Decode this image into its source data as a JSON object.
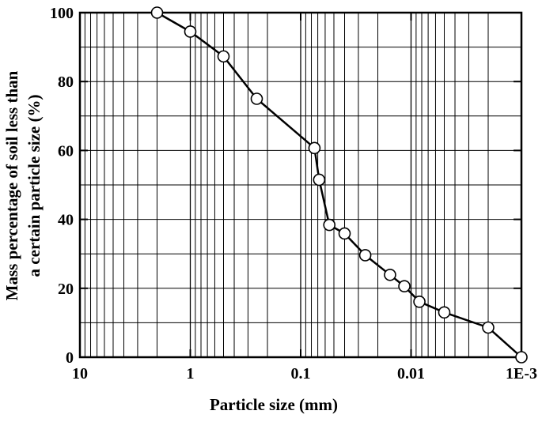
{
  "chart_data": {
    "type": "scatter",
    "title": "",
    "xlabel": "Particle size (mm)",
    "ylabel_lines": [
      "Mass percentage of soil less than",
      "a certain particle size (%)"
    ],
    "x_scale": "log",
    "x_reversed": true,
    "xlim": [
      10,
      0.001
    ],
    "ylim": [
      0,
      100
    ],
    "x_ticks": [
      {
        "value": 10,
        "label": "10"
      },
      {
        "value": 1,
        "label": "1"
      },
      {
        "value": 0.1,
        "label": "0.1"
      },
      {
        "value": 0.01,
        "label": "0.01"
      },
      {
        "value": 0.001,
        "label": "1E-3"
      }
    ],
    "y_ticks": [
      {
        "value": 0,
        "label": "0"
      },
      {
        "value": 20,
        "label": "20"
      },
      {
        "value": 40,
        "label": "40"
      },
      {
        "value": 60,
        "label": "60"
      },
      {
        "value": 80,
        "label": "80"
      },
      {
        "value": 100,
        "label": "100"
      }
    ],
    "grid": true,
    "marker": "open-circle",
    "line_connected": true,
    "series": [
      {
        "points": [
          {
            "x": 2.0,
            "y": 100
          },
          {
            "x": 1.0,
            "y": 94.5
          },
          {
            "x": 0.5,
            "y": 87.3
          },
          {
            "x": 0.25,
            "y": 75
          },
          {
            "x": 0.075,
            "y": 60.7
          },
          {
            "x": 0.068,
            "y": 51.5
          },
          {
            "x": 0.055,
            "y": 38.4
          },
          {
            "x": 0.04,
            "y": 35.9
          },
          {
            "x": 0.026,
            "y": 29.6
          },
          {
            "x": 0.0155,
            "y": 23.9
          },
          {
            "x": 0.0115,
            "y": 20.6
          },
          {
            "x": 0.0084,
            "y": 16.1
          },
          {
            "x": 0.005,
            "y": 13
          },
          {
            "x": 0.002,
            "y": 8.6
          },
          {
            "x": 0.001,
            "y": 0
          }
        ]
      }
    ]
  },
  "colors": {
    "line": "#000000",
    "grid": "#000000",
    "marker_fill": "#ffffff"
  }
}
